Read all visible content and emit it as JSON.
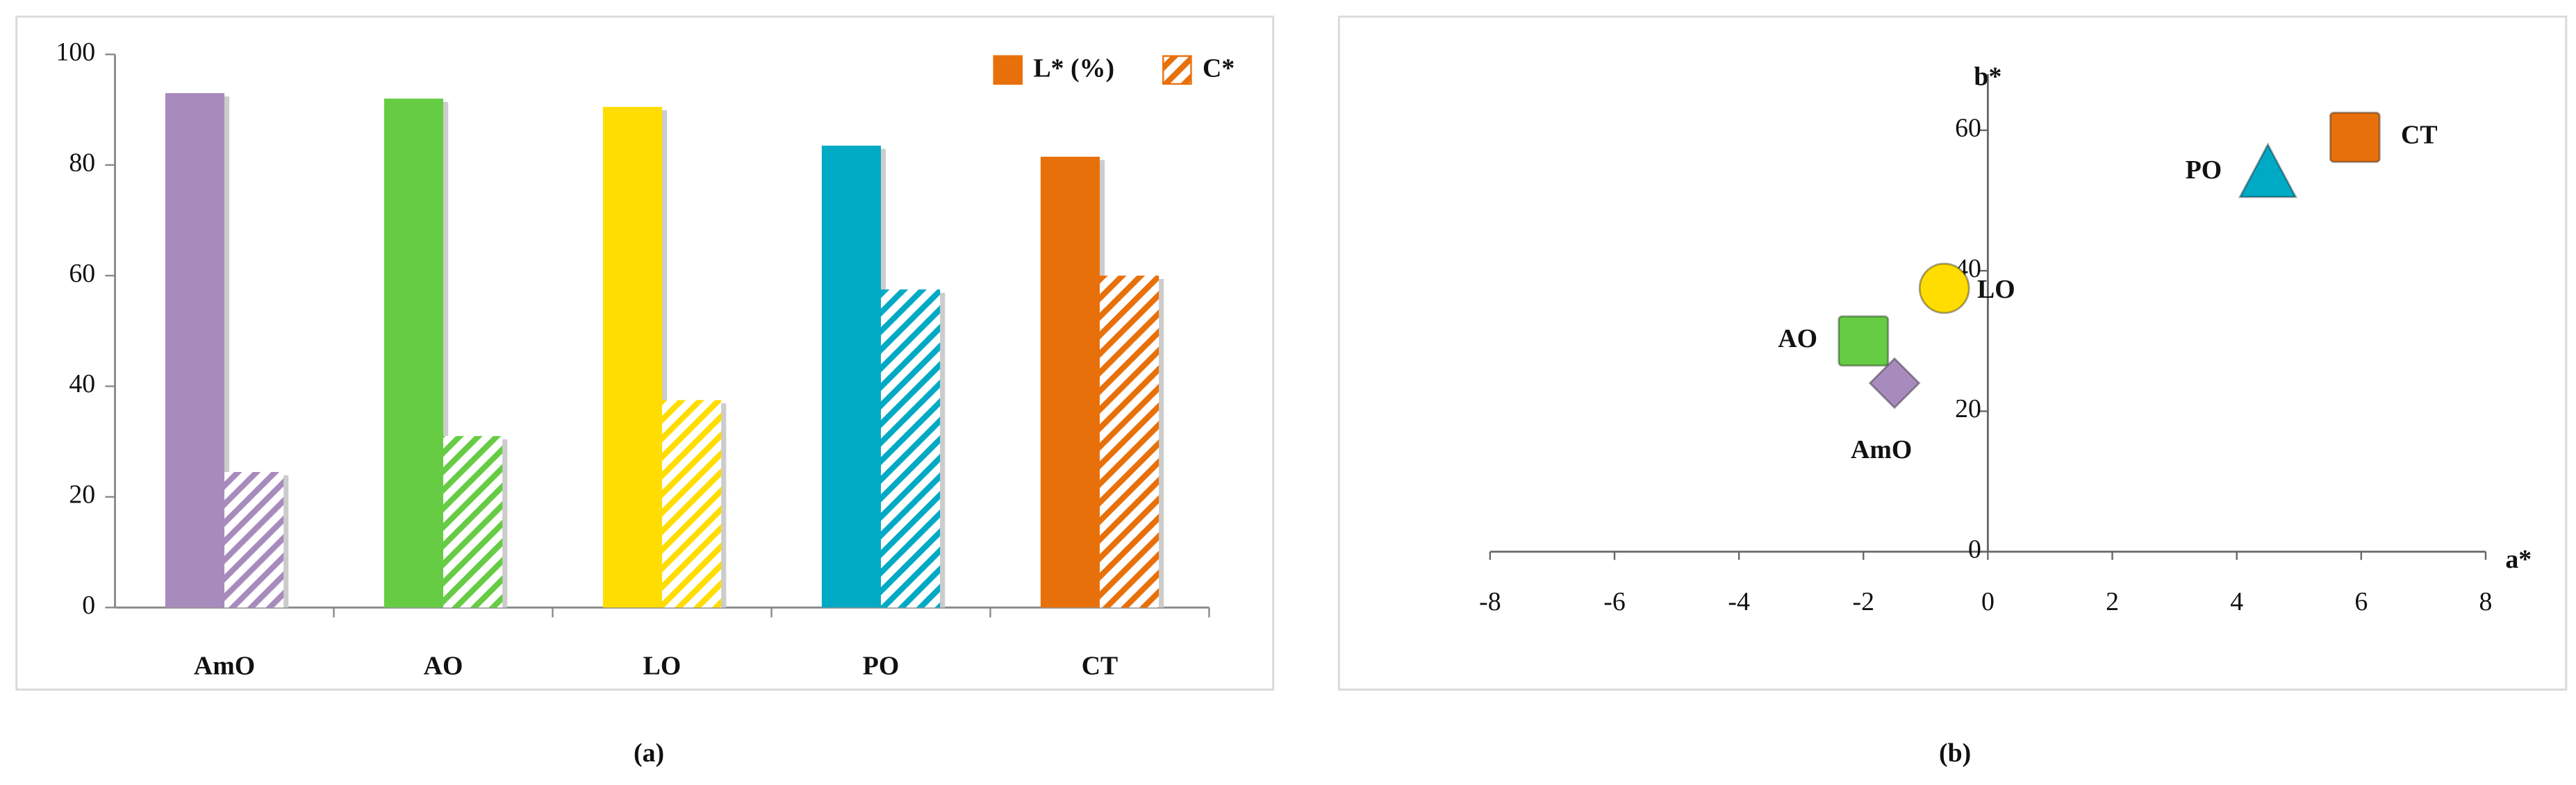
{
  "chart_data": [
    {
      "type": "bar",
      "caption": "(a)",
      "categories": [
        "AmO",
        "AO",
        "LO",
        "PO",
        "CT"
      ],
      "colors": [
        "#a88bbd",
        "#66cc44",
        "#ffdd00",
        "#00a9c4",
        "#e8700a"
      ],
      "series": [
        {
          "name": "L* (%)",
          "color": "#e8700a",
          "pattern": "solid",
          "values": [
            93,
            92,
            90.5,
            83.5,
            81.5
          ]
        },
        {
          "name": "C*",
          "color": "#e8700a",
          "pattern": "hatch",
          "values": [
            24.5,
            31,
            37.5,
            57.5,
            60
          ]
        }
      ],
      "ylim": [
        0,
        100
      ],
      "yticks": [
        0,
        20,
        40,
        60,
        80,
        100
      ],
      "legend": "top-right"
    },
    {
      "type": "scatter",
      "caption": "(b)",
      "xlabel": "a*",
      "ylabel": "b*",
      "labels": [
        "AmO",
        "AO",
        "LO",
        "PO",
        "CT"
      ],
      "x": [
        -1.5,
        -2.0,
        -0.7,
        4.5,
        5.9
      ],
      "y": [
        24,
        30,
        37.5,
        54,
        59
      ],
      "colors": [
        "#a88bbd",
        "#66cc44",
        "#ffdd00",
        "#00a9c4",
        "#e8700a"
      ],
      "markers": [
        "diamond",
        "square",
        "circle",
        "triangle",
        "square"
      ],
      "xlim": [
        -8,
        8
      ],
      "xticks": [
        -8,
        -6,
        -4,
        -2,
        0,
        2,
        4,
        6,
        8
      ],
      "ylim": [
        0,
        68
      ],
      "yticks": [
        0,
        20,
        40,
        60
      ]
    }
  ]
}
